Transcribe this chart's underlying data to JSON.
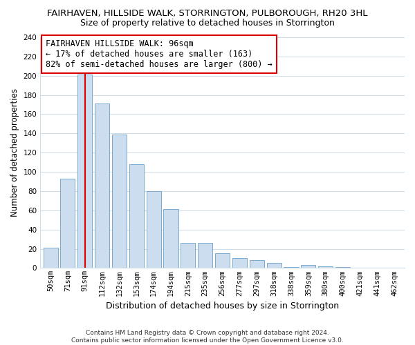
{
  "title": "FAIRHAVEN, HILLSIDE WALK, STORRINGTON, PULBOROUGH, RH20 3HL",
  "subtitle": "Size of property relative to detached houses in Storrington",
  "xlabel": "Distribution of detached houses by size in Storrington",
  "ylabel": "Number of detached properties",
  "categories": [
    "50sqm",
    "71sqm",
    "91sqm",
    "112sqm",
    "132sqm",
    "153sqm",
    "174sqm",
    "194sqm",
    "215sqm",
    "235sqm",
    "256sqm",
    "277sqm",
    "297sqm",
    "318sqm",
    "338sqm",
    "359sqm",
    "380sqm",
    "400sqm",
    "421sqm",
    "441sqm",
    "462sqm"
  ],
  "values": [
    21,
    93,
    201,
    171,
    139,
    108,
    80,
    61,
    26,
    26,
    15,
    10,
    8,
    5,
    1,
    3,
    2,
    1,
    0,
    0,
    0
  ],
  "bar_color": "#ccddf0",
  "bar_edge_color": "#7aaad0",
  "vline_x_index": 2,
  "vline_color": "#dd0000",
  "annotation_line1": "FAIRHAVEN HILLSIDE WALK: 96sqm",
  "annotation_line2": "← 17% of detached houses are smaller (163)",
  "annotation_line3": "82% of semi-detached houses are larger (800) →",
  "ylim": [
    0,
    240
  ],
  "yticks": [
    0,
    20,
    40,
    60,
    80,
    100,
    120,
    140,
    160,
    180,
    200,
    220,
    240
  ],
  "footer_text": "Contains HM Land Registry data © Crown copyright and database right 2024.\nContains public sector information licensed under the Open Government Licence v3.0.",
  "bg_color": "#ffffff",
  "grid_color": "#d0dce8",
  "title_fontsize": 9.5,
  "subtitle_fontsize": 9,
  "ylabel_fontsize": 8.5,
  "xlabel_fontsize": 9,
  "tick_fontsize": 7.5,
  "annotation_fontsize": 8.5,
  "footer_fontsize": 6.5
}
